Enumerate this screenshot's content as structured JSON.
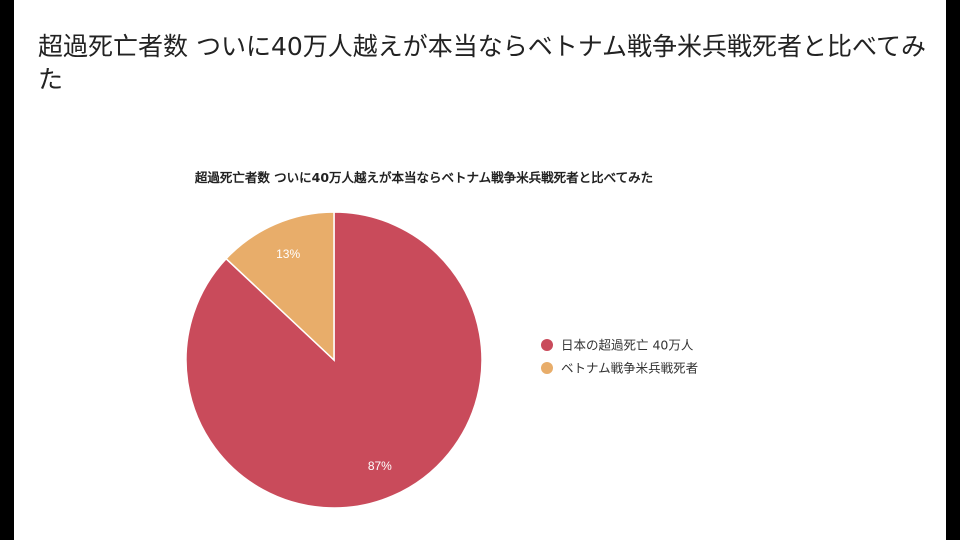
{
  "slide": {
    "title": "超過死亡者数 ついに40万人越えが本当ならベトナム戦争米兵戦死者と比べてみた"
  },
  "colors": {
    "background": "#ffffff",
    "frame": "#000000",
    "series_1": "#c94b5b",
    "series_2": "#e8ad6a"
  },
  "chart_data": {
    "type": "pie",
    "title": "超過死亡者数 ついに40万人越えが本当ならベトナム戦争米兵戦死者と比べてみた",
    "categories": [
      "日本の超過死亡 40万人",
      "ベトナム戦争米兵戦死者"
    ],
    "values": [
      87,
      13
    ],
    "labels": [
      "87%",
      "13%"
    ],
    "colors": [
      "#c94b5b",
      "#e8ad6a"
    ],
    "legend_position": "right"
  }
}
